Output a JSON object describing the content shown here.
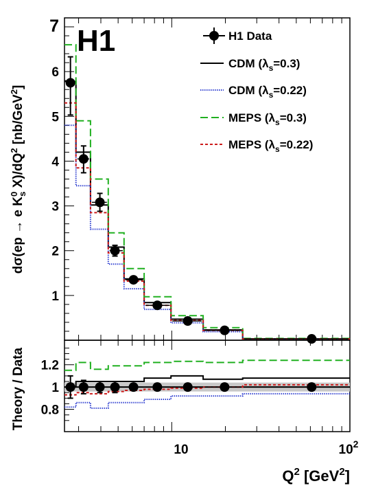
{
  "chart_data": [
    {
      "type": "line",
      "experiment_label": "H1",
      "ylabel": {
        "pre": "dσ(ep → e K",
        "sup1": "0",
        "sub1": "s",
        "mid": " X)/dQ",
        "sup2": "2",
        "post": " [nb/GeV",
        "sup3": "2",
        "end": "]"
      },
      "xscale": "log",
      "xlim": [
        2.5,
        100
      ],
      "ylim": [
        0,
        7.2
      ],
      "ytick_labels": [
        "1",
        "2",
        "3",
        "4",
        "5",
        "6",
        "7"
      ],
      "bin_edges": [
        2.5,
        2.9,
        3.5,
        4.4,
        5.4,
        7.0,
        9.9,
        15.0,
        25.0,
        100.0
      ],
      "data": {
        "name": "H1 Data",
        "x": [
          2.7,
          3.2,
          3.95,
          4.8,
          6.1,
          8.3,
          12.3,
          19.8,
          61.0
        ],
        "y": [
          5.75,
          4.05,
          3.08,
          2.0,
          1.35,
          0.78,
          0.43,
          0.22,
          0.03
        ],
        "err_low": [
          0.72,
          0.31,
          0.2,
          0.12,
          0.04,
          0.03,
          0.02,
          0.02,
          0.01
        ],
        "err_high": [
          0.58,
          0.29,
          0.2,
          0.12,
          0.04,
          0.03,
          0.02,
          0.02,
          0.01
        ]
      },
      "series": [
        {
          "name": "CDM (λs=0.3)",
          "label_pre": "CDM (λ",
          "label_sub": "s",
          "label_post": "=0.3)",
          "color": "#000000",
          "style": "solid",
          "values": [
            5.78,
            4.2,
            3.02,
            2.08,
            1.37,
            0.84,
            0.47,
            0.23,
            0.03
          ]
        },
        {
          "name": "CDM (λs=0.22)",
          "label_pre": "CDM (λ",
          "label_sub": "s",
          "label_post": "=0.22)",
          "color": "#3040d0",
          "style": "dotted",
          "values": [
            4.8,
            3.45,
            2.48,
            1.7,
            1.15,
            0.69,
            0.39,
            0.19,
            0.03
          ]
        },
        {
          "name": "MEPS (λs=0.3)",
          "label_pre": "MEPS (λ",
          "label_sub": "s",
          "label_post": "=0.3)",
          "color": "#20b020",
          "style": "dashed",
          "values": [
            6.6,
            4.9,
            3.6,
            2.4,
            1.6,
            0.97,
            0.55,
            0.28,
            0.04
          ]
        },
        {
          "name": "MEPS (λs=0.22)",
          "label_pre": "MEPS (λ",
          "label_sub": "s",
          "label_post": "=0.22)",
          "color": "#cc1a1a",
          "style": "short-dash",
          "values": [
            5.3,
            3.85,
            2.85,
            1.95,
            1.32,
            0.78,
            0.44,
            0.22,
            0.03
          ]
        }
      ]
    },
    {
      "type": "line",
      "ylabel": "Theory / Data",
      "xlabel": {
        "pre": "Q",
        "sup1": "2",
        "mid": " [GeV",
        "sup2": "2",
        "end": "]"
      },
      "xscale": "log",
      "xlim": [
        2.5,
        100
      ],
      "ylim": [
        0.6,
        1.42
      ],
      "ytick_labels": [
        "0.8",
        "1",
        "1.2"
      ],
      "xtick_labels": [
        {
          "base": "10",
          "exp": ""
        },
        {
          "base": "10",
          "exp": "2"
        }
      ],
      "bin_edges": [
        2.5,
        2.9,
        3.5,
        4.4,
        5.4,
        7.0,
        9.9,
        15.0,
        25.0,
        100.0
      ],
      "data": {
        "x": [
          2.7,
          3.2,
          3.95,
          4.8,
          6.1,
          8.3,
          12.3,
          19.8,
          61.0
        ],
        "y": [
          1.0,
          1.0,
          1.0,
          1.0,
          1.0,
          1.0,
          1.0,
          1.0,
          1.0
        ],
        "err": [
          0.1,
          0.06,
          0.05,
          0.05,
          0.03,
          0.03,
          0.03,
          0.03,
          0.03
        ],
        "band_half_width": 0.04
      },
      "series": [
        {
          "name": "CDM (λs=0.3)",
          "color": "#000000",
          "style": "solid",
          "values": [
            1.0,
            1.05,
            1.05,
            1.05,
            1.05,
            1.08,
            1.1,
            1.07,
            1.08
          ]
        },
        {
          "name": "CDM (λs=0.22)",
          "color": "#3040d0",
          "style": "dotted",
          "values": [
            0.82,
            0.86,
            0.81,
            0.86,
            0.86,
            0.89,
            0.92,
            0.92,
            0.94
          ]
        },
        {
          "name": "MEPS (λs=0.3)",
          "color": "#20b020",
          "style": "dashed",
          "values": [
            1.15,
            1.22,
            1.16,
            1.19,
            1.19,
            1.22,
            1.23,
            1.22,
            1.24
          ]
        },
        {
          "name": "MEPS (λs=0.22)",
          "color": "#cc1a1a",
          "style": "short-dash",
          "values": [
            0.93,
            0.95,
            0.94,
            0.96,
            0.97,
            0.98,
            0.99,
            1.0,
            1.02
          ]
        }
      ]
    }
  ]
}
